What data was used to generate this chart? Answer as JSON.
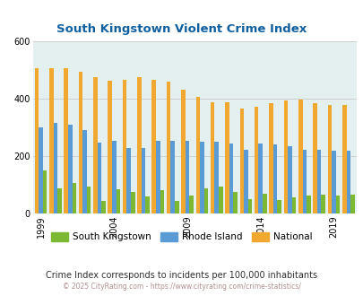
{
  "title": "South Kingstown Violent Crime Index",
  "years": [
    1999,
    2000,
    2001,
    2002,
    2003,
    2004,
    2005,
    2006,
    2007,
    2008,
    2009,
    2010,
    2011,
    2012,
    2013,
    2014,
    2015,
    2016,
    2017,
    2018,
    2019,
    2020
  ],
  "south_kingstown": [
    150,
    85,
    105,
    93,
    43,
    83,
    75,
    57,
    80,
    43,
    63,
    85,
    93,
    73,
    50,
    68,
    46,
    55,
    60,
    65,
    63,
    65
  ],
  "rhode_island": [
    300,
    315,
    310,
    290,
    245,
    252,
    228,
    228,
    253,
    252,
    252,
    248,
    248,
    243,
    220,
    243,
    240,
    233,
    220,
    220,
    218,
    218
  ],
  "national": [
    507,
    507,
    507,
    495,
    475,
    463,
    465,
    474,
    467,
    458,
    430,
    405,
    388,
    388,
    366,
    373,
    383,
    395,
    398,
    383,
    379,
    379
  ],
  "sk_color": "#7cb832",
  "ri_color": "#5b9bd5",
  "nat_color": "#f0a830",
  "bg_color": "#e4f0f0",
  "ylim": [
    0,
    600
  ],
  "yticks": [
    0,
    200,
    400,
    600
  ],
  "legend_labels": [
    "South Kingstown",
    "Rhode Island",
    "National"
  ],
  "subtitle": "Crime Index corresponds to incidents per 100,000 inhabitants",
  "footer": "© 2025 CityRating.com - https://www.cityrating.com/crime-statistics/",
  "title_color": "#1060a0",
  "subtitle_color": "#303030",
  "footer_color": "#b09090",
  "grid_color": "#cccccc",
  "fig_width": 4.06,
  "fig_height": 3.3,
  "dpi": 100
}
